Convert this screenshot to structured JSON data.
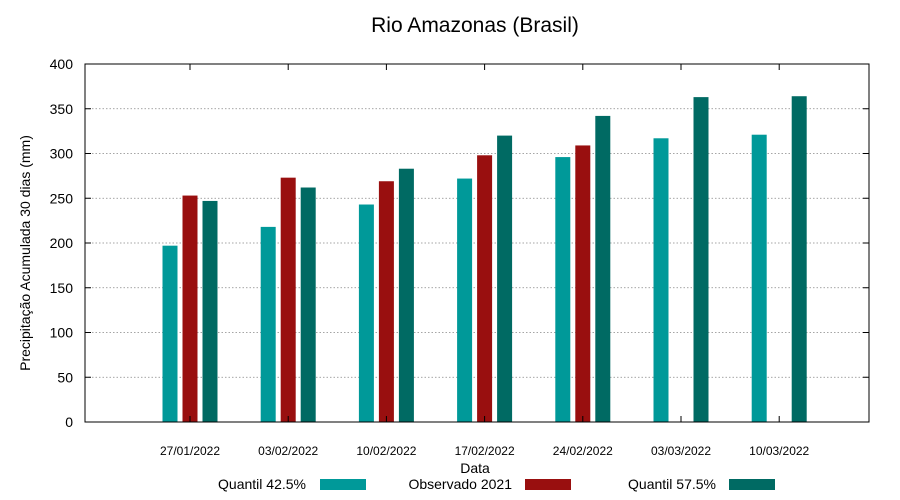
{
  "chart_data": {
    "type": "bar",
    "title": "Rio Amazonas (Brasil)",
    "xlabel": "Data",
    "ylabel": "Precipitação Acumulada 30 dias (mm)",
    "ylim": [
      0,
      400
    ],
    "yticks": [
      0,
      50,
      100,
      150,
      200,
      250,
      300,
      350,
      400
    ],
    "grid": true,
    "legend_position": "bottom",
    "categories": [
      "27/01/2022",
      "03/02/2022",
      "10/02/2022",
      "17/02/2022",
      "24/02/2022",
      "03/03/2022",
      "10/03/2022"
    ],
    "series": [
      {
        "name": "Quantil 42.5%",
        "color": "#009999",
        "values": [
          197,
          218,
          243,
          272,
          296,
          317,
          321
        ]
      },
      {
        "name": "Observado 2021",
        "color": "#990f0f",
        "values": [
          253,
          273,
          269,
          298,
          309,
          null,
          null
        ]
      },
      {
        "name": "Quantil 57.5%",
        "color": "#006a63",
        "values": [
          247,
          262,
          283,
          320,
          342,
          363,
          364
        ]
      }
    ]
  }
}
